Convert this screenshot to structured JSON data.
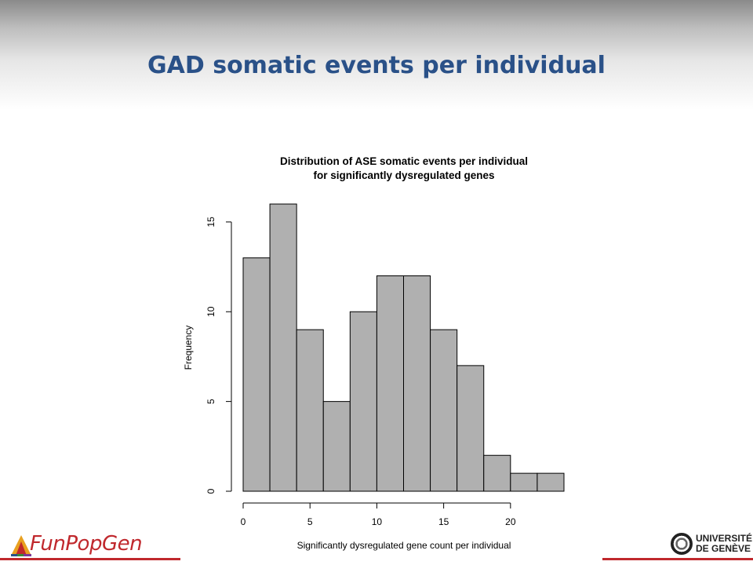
{
  "slide": {
    "title": "GAD somatic events per individual"
  },
  "logos": {
    "left_text": "FunPopGen",
    "right_line1": "UNIVERSITÉ",
    "right_line2": "DE GENÈVE"
  },
  "colors": {
    "title": "#2a5188",
    "bar_fill": "#b0b0b0",
    "accent_red": "#c0282d"
  },
  "chart_data": {
    "type": "bar",
    "title_lines": [
      "Distribution of ASE somatic events per individual",
      "for significantly dysregulated genes"
    ],
    "xlabel": "Significantly dysregulated gene count per individual",
    "ylabel": "Frequency",
    "bin_edges": [
      0,
      2,
      4,
      6,
      8,
      10,
      12,
      14,
      16,
      18,
      20,
      22,
      24
    ],
    "values": [
      13,
      16,
      9,
      5,
      10,
      12,
      12,
      9,
      7,
      2,
      1,
      1
    ],
    "xticks": [
      0,
      5,
      10,
      15,
      20
    ],
    "yticks": [
      0,
      5,
      10,
      15
    ],
    "xlim": [
      0,
      24
    ],
    "ylim": [
      0,
      16
    ],
    "grid": false
  }
}
